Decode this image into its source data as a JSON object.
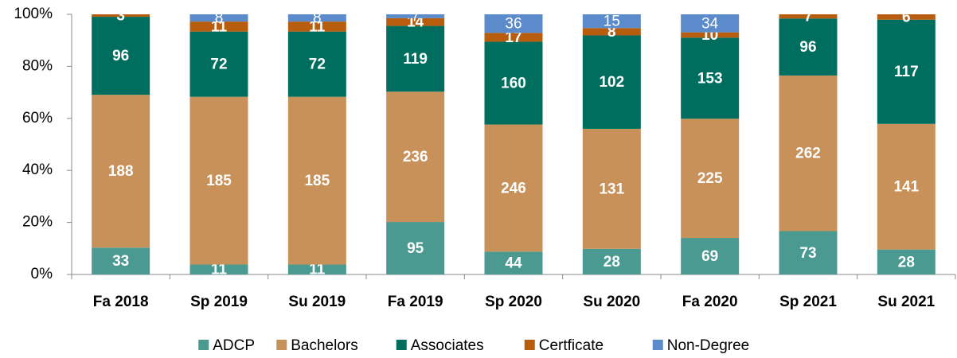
{
  "chart_data": {
    "type": "bar",
    "stack": "percent",
    "categories": [
      "Fa 2018",
      "Sp 2019",
      "Su 2019",
      "Fa 2019",
      "Sp 2020",
      "Su 2020",
      "Fa 2020",
      "Sp 2021",
      "Su 2021"
    ],
    "series": [
      {
        "name": "ADCP",
        "color": "#4a9a91",
        "values": [
          33,
          11,
          11,
          95,
          44,
          28,
          69,
          73,
          28
        ]
      },
      {
        "name": "Bachelors",
        "color": "#c8915a",
        "values": [
          188,
          185,
          185,
          236,
          246,
          131,
          225,
          262,
          141
        ]
      },
      {
        "name": "Associates",
        "color": "#006e5f",
        "values": [
          96,
          72,
          72,
          119,
          160,
          102,
          153,
          96,
          117
        ]
      },
      {
        "name": "Certficate",
        "color": "#b85c0e",
        "values": [
          3,
          11,
          11,
          14,
          17,
          8,
          10,
          7,
          6
        ]
      },
      {
        "name": "Non-Degree",
        "color": "#5b8bcb",
        "values": [
          null,
          8,
          8,
          7,
          36,
          15,
          34,
          null,
          null
        ]
      }
    ],
    "ylim": [
      0,
      100
    ],
    "yticks": [
      {
        "value": 0,
        "label": "0%"
      },
      {
        "value": 20,
        "label": "20%"
      },
      {
        "value": 40,
        "label": "40%"
      },
      {
        "value": 60,
        "label": "60%"
      },
      {
        "value": 80,
        "label": "80%"
      },
      {
        "value": 100,
        "label": "100%"
      }
    ],
    "legend": "bottom"
  }
}
